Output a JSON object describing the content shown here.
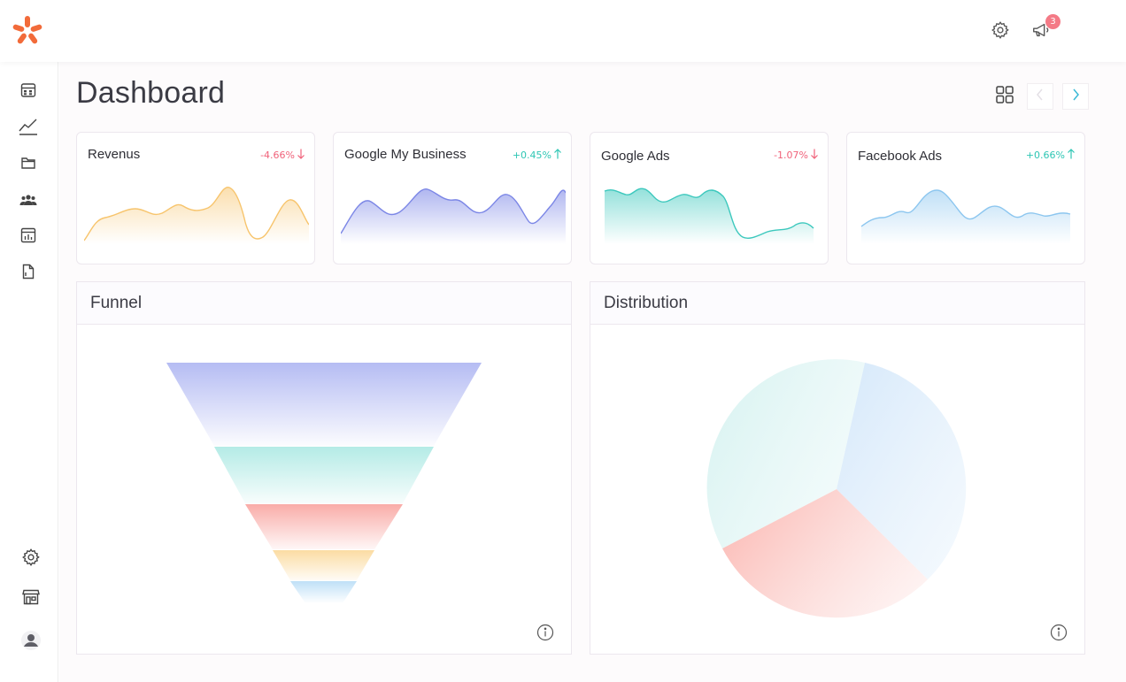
{
  "topbar": {
    "notification_count": "3",
    "settings_icon": "gear-icon",
    "notifications_icon": "megaphone-icon",
    "brand_color": "#f26b3a",
    "badge_color": "#f47a86"
  },
  "sidebar": {
    "top_items": [
      {
        "name": "calendar-grid-icon"
      },
      {
        "name": "line-chart-icon"
      },
      {
        "name": "folder-icon"
      },
      {
        "name": "users-icon"
      },
      {
        "name": "report-icon"
      },
      {
        "name": "document-icon"
      }
    ],
    "bottom_items": [
      {
        "name": "gear-icon"
      },
      {
        "name": "store-icon"
      },
      {
        "name": "user-avatar-icon"
      }
    ]
  },
  "page": {
    "title": "Dashboard"
  },
  "cards": [
    {
      "title": "Revenus",
      "delta": "-4.66%",
      "direction": "down",
      "color": "#f7c46c",
      "delta_color": "#f0627a"
    },
    {
      "title": "Google My Business",
      "delta": "+0.45%",
      "direction": "up",
      "color": "#7b86e6",
      "delta_color": "#2ec6b4"
    },
    {
      "title": "Google Ads",
      "delta": "-1.07%",
      "direction": "down",
      "color": "#3cc8bd",
      "delta_color": "#f0627a"
    },
    {
      "title": "Facebook Ads",
      "delta": "+0.66%",
      "direction": "up",
      "color": "#8cc6ef",
      "delta_color": "#2ec6b4"
    }
  ],
  "panels": {
    "funnel": {
      "title": "Funnel"
    },
    "distribution": {
      "title": "Distribution"
    }
  }
}
